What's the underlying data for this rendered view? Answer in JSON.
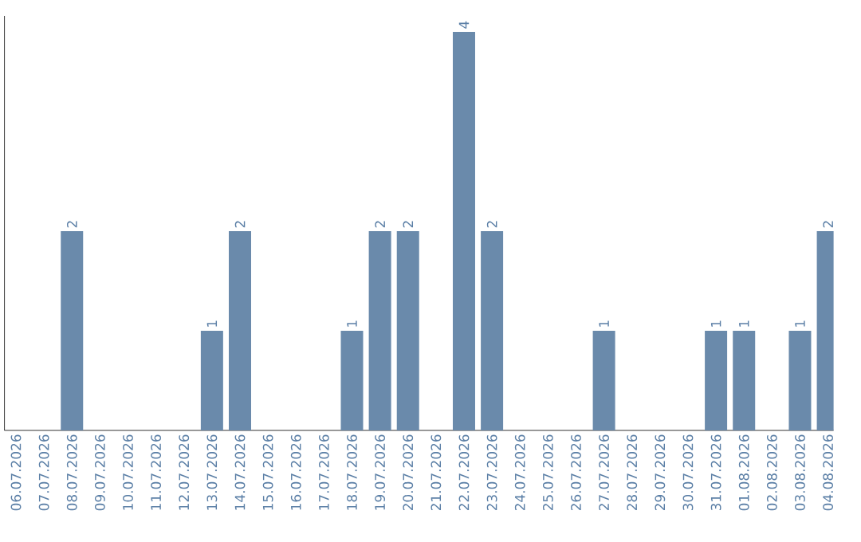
{
  "chart_data": {
    "type": "bar",
    "categories": [
      "06.07.2026",
      "07.07.2026",
      "08.07.2026",
      "09.07.2026",
      "10.07.2026",
      "11.07.2026",
      "12.07.2026",
      "13.07.2026",
      "14.07.2026",
      "15.07.2026",
      "16.07.2026",
      "17.07.2026",
      "18.07.2026",
      "19.07.2026",
      "20.07.2026",
      "21.07.2026",
      "22.07.2026",
      "23.07.2026",
      "24.07.2026",
      "25.07.2026",
      "26.07.2026",
      "27.07.2026",
      "28.07.2026",
      "29.07.2026",
      "30.07.2026",
      "31.07.2026",
      "01.08.2026",
      "02.08.2026",
      "03.08.2026",
      "04.08.2026"
    ],
    "values": [
      0,
      0,
      2,
      0,
      0,
      0,
      0,
      1,
      2,
      0,
      0,
      0,
      1,
      2,
      2,
      0,
      4,
      2,
      0,
      0,
      0,
      1,
      0,
      0,
      0,
      1,
      1,
      0,
      1,
      2
    ],
    "value_labels": [
      null,
      null,
      "2",
      null,
      null,
      null,
      null,
      "1",
      "2",
      null,
      null,
      null,
      "1",
      "2",
      "2",
      null,
      "4",
      "2",
      null,
      null,
      null,
      "1",
      null,
      null,
      null,
      "1",
      "1",
      null,
      "1",
      "2"
    ],
    "color": "#6a8aab",
    "tick_labels": "x"
  }
}
